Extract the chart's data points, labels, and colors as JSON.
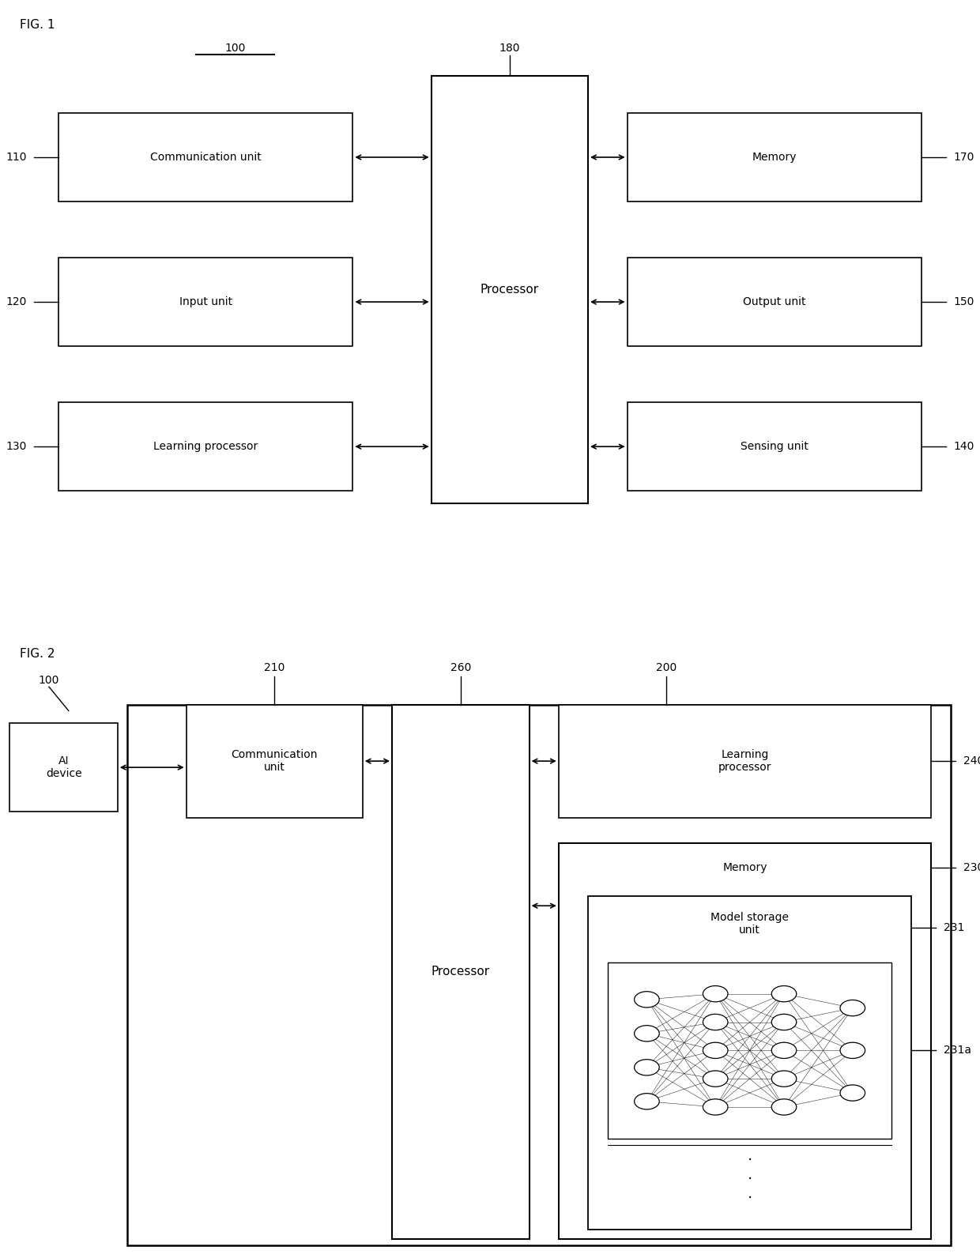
{
  "fig1": {
    "title": "FIG. 1",
    "label_100": "100",
    "label_180": "180",
    "boxes_left": [
      {
        "label": "Communication unit",
        "ref": "110"
      },
      {
        "label": "Input unit",
        "ref": "120"
      },
      {
        "label": "Learning processor",
        "ref": "130"
      }
    ],
    "boxes_right": [
      {
        "label": "Memory",
        "ref": "170"
      },
      {
        "label": "Output unit",
        "ref": "150"
      },
      {
        "label": "Sensing unit",
        "ref": "140"
      }
    ],
    "processor_label": "Processor"
  },
  "fig2": {
    "title": "FIG. 2",
    "label_200": "200",
    "label_260": "260",
    "label_210": "210",
    "label_100": "100",
    "label_240": "240",
    "label_230": "230",
    "label_231": "231",
    "label_231a": "231a",
    "ai_device_label": "AI\ndevice",
    "comm_unit_label": "Communication\nunit",
    "processor_label": "Processor",
    "learning_proc_label": "Learning\nprocessor",
    "memory_label": "Memory",
    "model_storage_label": "Model storage\nunit"
  },
  "bg_color": "#ffffff",
  "line_color": "#000000"
}
